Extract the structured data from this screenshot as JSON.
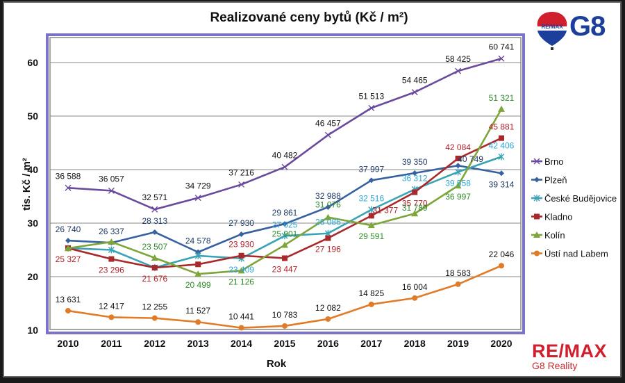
{
  "chart_data": {
    "type": "line",
    "title": "Realizované ceny bytů (Kč / m²)",
    "xlabel": "Rok",
    "ylabel": "tis. Kč / m²",
    "x": [
      2010,
      2011,
      2012,
      2013,
      2014,
      2015,
      2016,
      2017,
      2018,
      2019,
      2020
    ],
    "x_tick_labels": [
      "2010",
      "2011",
      "2012",
      "2013",
      "2014",
      "2015",
      "2016",
      "2017",
      "2018",
      "2019",
      "2020"
    ],
    "y_tick_labels": [
      "10",
      "20",
      "30",
      "40",
      "50",
      "60"
    ],
    "ylim": [
      10,
      60
    ],
    "grid": true,
    "legend_position": "right",
    "series": [
      {
        "name": "Brno",
        "color": "#6a4a9c",
        "marker": "x",
        "label_color": "#111111",
        "values": [
          36588,
          36057,
          32571,
          34729,
          37216,
          40482,
          46457,
          51513,
          54465,
          58425,
          60741
        ],
        "labels": [
          "36 588",
          "36 057",
          "32 571",
          "34 729",
          "37 216",
          "40 482",
          "46 457",
          "51 513",
          "54 465",
          "58 425",
          "60 741"
        ]
      },
      {
        "name": "Plzeň",
        "color": "#36609f",
        "marker": "diamond",
        "label_color": "#1f3a66",
        "values": [
          26740,
          26337,
          28313,
          24578,
          27930,
          29861,
          32988,
          37997,
          39350,
          40749,
          39314
        ],
        "labels": [
          "26 740",
          "26 337",
          "28 313",
          "24 578",
          "27 930",
          "29 861",
          "32 988",
          "37 997",
          "39 350",
          "40 749",
          "39 314"
        ]
      },
      {
        "name": "České Budějovice",
        "color": "#3aa3b5",
        "marker": "star",
        "label_color": "#29a6d8",
        "values": [
          25327,
          25000,
          21676,
          23900,
          23409,
          27625,
          28086,
          32516,
          36312,
          39558,
          42406
        ],
        "labels": [
          "",
          "",
          "",
          "",
          "23 409",
          "27 625",
          "28 086",
          "32 516",
          "36 312",
          "39 558",
          "42 406"
        ]
      },
      {
        "name": "Kladno",
        "color": "#a8292c",
        "marker": "square",
        "label_color": "#b1202a",
        "values": [
          25327,
          23296,
          21676,
          22300,
          23930,
          23447,
          27196,
          31377,
          35770,
          42084,
          45881
        ],
        "labels": [
          "25 327",
          "23 296",
          "21 676",
          "",
          "23 930",
          "23 447",
          "27 196",
          "31 377",
          "35 770",
          "42 084",
          "45 881"
        ]
      },
      {
        "name": "Kolín",
        "color": "#7ea53a",
        "marker": "triangle",
        "label_color": "#2f8a2a",
        "values": [
          25300,
          26500,
          23507,
          20499,
          21126,
          25901,
          31076,
          29591,
          31789,
          36997,
          51321
        ],
        "labels": [
          "",
          "",
          "23 507",
          "20 499",
          "21 126",
          "25 901",
          "31 076",
          "29 591",
          "31 789",
          "36 997",
          "51 321"
        ]
      },
      {
        "name": "Ústí nad Labem",
        "color": "#e07b28",
        "marker": "circle",
        "label_color": "#111111",
        "values": [
          13631,
          12417,
          12255,
          11527,
          10441,
          10783,
          12082,
          14825,
          16004,
          18583,
          22046
        ],
        "labels": [
          "13 631",
          "12 417",
          "12 255",
          "11 527",
          "10 441",
          "10 783",
          "12 082",
          "14 825",
          "16 004",
          "18 583",
          "22 046"
        ]
      }
    ]
  },
  "branding": {
    "top_logo_balloon_text": "RE/MAX",
    "top_logo_text": "G8",
    "bottom_logo_text": "RE/MAX",
    "bottom_logo_subtext": "G8 Reality"
  }
}
